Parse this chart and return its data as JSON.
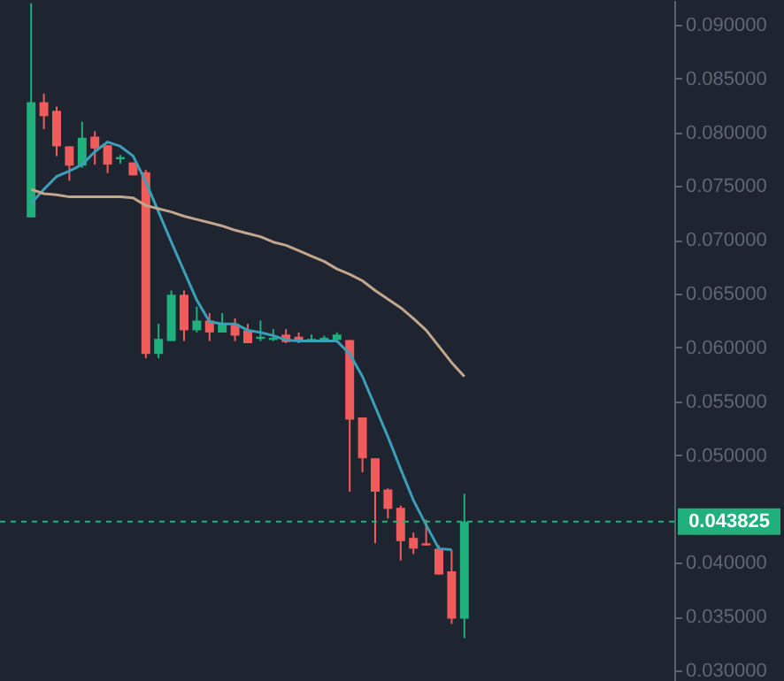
{
  "chart_data": {
    "type": "candlestick",
    "categories": [
      null,
      null,
      null,
      null,
      null,
      null,
      null,
      null,
      null,
      null,
      null,
      null,
      null,
      null,
      null,
      null,
      null,
      null,
      null,
      null,
      null,
      null,
      null,
      null,
      null,
      null,
      null,
      null,
      null,
      null,
      null,
      null,
      null,
      null,
      null
    ],
    "ohlc": [
      [
        0.0721,
        0.092,
        0.0721,
        0.0828
      ],
      [
        0.0828,
        0.0836,
        0.0803,
        0.0815
      ],
      [
        0.082,
        0.0824,
        0.0778,
        0.0787
      ],
      [
        0.0787,
        0.0787,
        0.0755,
        0.0769
      ],
      [
        0.0769,
        0.081,
        0.0767,
        0.0795
      ],
      [
        0.0796,
        0.0801,
        0.077,
        0.0785
      ],
      [
        0.0788,
        0.0788,
        0.0762,
        0.077
      ],
      [
        0.0775,
        0.0779,
        0.0771,
        0.0777
      ],
      [
        0.0772,
        0.0772,
        0.076,
        0.076
      ],
      [
        0.0763,
        0.0765,
        0.059,
        0.0594
      ],
      [
        0.0594,
        0.0622,
        0.059,
        0.0608
      ],
      [
        0.0606,
        0.0653,
        0.0606,
        0.0649
      ],
      [
        0.0649,
        0.0653,
        0.0606,
        0.0616
      ],
      [
        0.0616,
        0.0638,
        0.0614,
        0.0625
      ],
      [
        0.0625,
        0.0632,
        0.0606,
        0.0614
      ],
      [
        0.0614,
        0.0632,
        0.0614,
        0.0622
      ],
      [
        0.0622,
        0.0627,
        0.0606,
        0.0611
      ],
      [
        0.0616,
        0.0622,
        0.0604,
        0.0604
      ],
      [
        0.0608,
        0.0625,
        0.0606,
        0.061
      ],
      [
        0.0607,
        0.0617,
        0.0606,
        0.0609
      ],
      [
        0.0612,
        0.0617,
        0.0604,
        0.0605
      ],
      [
        0.061,
        0.0614,
        0.0604,
        0.0606
      ],
      [
        0.0606,
        0.0612,
        0.0605,
        0.0608
      ],
      [
        0.0606,
        0.0611,
        0.0605,
        0.0609
      ],
      [
        0.0607,
        0.0614,
        0.0606,
        0.0612
      ],
      [
        0.0607,
        0.0607,
        0.0466,
        0.0533
      ],
      [
        0.0535,
        0.0535,
        0.0484,
        0.0497
      ],
      [
        0.0497,
        0.0497,
        0.0418,
        0.0466
      ],
      [
        0.0468,
        0.0469,
        0.0441,
        0.045
      ],
      [
        0.0451,
        0.0453,
        0.0402,
        0.042
      ],
      [
        0.0423,
        0.0428,
        0.0408,
        0.0413
      ],
      [
        0.0418,
        0.044,
        0.0416,
        0.0416
      ],
      [
        0.0413,
        0.0416,
        0.0389,
        0.0389
      ],
      [
        0.0392,
        0.0412,
        0.0343,
        0.0348
      ],
      [
        0.0348,
        0.0464,
        0.033,
        0.043825
      ]
    ],
    "colors": [
      "#1fb07c",
      "#f05b5b",
      "#f05b5b",
      "#f05b5b",
      "#1fb07c",
      "#f05b5b",
      "#f05b5b",
      "#1fb07c",
      "#f05b5b",
      "#f05b5b",
      "#1fb07c",
      "#1fb07c",
      "#f05b5b",
      "#1fb07c",
      "#f05b5b",
      "#1fb07c",
      "#f05b5b",
      "#f05b5b",
      "#1fb07c",
      "#1fb07c",
      "#f05b5b",
      "#f05b5b",
      "#1fb07c",
      "#1fb07c",
      "#1fb07c",
      "#f05b5b",
      "#f05b5b",
      "#f05b5b",
      "#f05b5b",
      "#f05b5b",
      "#f05b5b",
      "#f05b5b",
      "#f05b5b",
      "#f05b5b",
      "#1fb07c"
    ],
    "series": [
      {
        "type": "line",
        "color": "#3a9fb8",
        "values": [
          0.0734,
          0.0747,
          0.0759,
          0.0764,
          0.077,
          0.0782,
          0.0791,
          0.0787,
          0.0778,
          0.0754,
          0.0726,
          0.0698,
          0.0671,
          0.0644,
          0.0624,
          0.0622,
          0.0622,
          0.0616,
          0.0614,
          0.0611,
          0.0607,
          0.0606,
          0.0606,
          0.0606,
          0.0606,
          0.0594,
          0.0573,
          0.0545,
          0.0517,
          0.0487,
          0.0458,
          0.0435,
          0.0413,
          0.0412,
          null
        ]
      },
      {
        "type": "line",
        "color": "#c2a78e",
        "values": [
          0.0747,
          0.0743,
          0.0742,
          0.074,
          0.074,
          0.074,
          0.074,
          0.074,
          0.0739,
          0.0732,
          0.0729,
          0.0726,
          0.0722,
          0.0719,
          0.0716,
          0.0713,
          0.0709,
          0.0706,
          0.0703,
          0.0698,
          0.0695,
          0.069,
          0.0685,
          0.068,
          0.0673,
          0.0668,
          0.0662,
          0.0653,
          0.0645,
          0.0637,
          0.0627,
          0.0616,
          0.0601,
          0.0586,
          0.0573
        ]
      }
    ],
    "ylim": [
      0.029,
      0.0923
    ],
    "yticks": [
      {
        "value": 0.03,
        "label": "0.030000"
      },
      {
        "value": 0.035,
        "label": "0.035000"
      },
      {
        "value": 0.04,
        "label": "0.040000"
      },
      {
        "value": 0.05,
        "label": "0.050000"
      },
      {
        "value": 0.055,
        "label": "0.055000"
      },
      {
        "value": 0.06,
        "label": "0.060000"
      },
      {
        "value": 0.065,
        "label": "0.065000"
      },
      {
        "value": 0.07,
        "label": "0.070000"
      },
      {
        "value": 0.075,
        "label": "0.075000"
      },
      {
        "value": 0.08,
        "label": "0.080000"
      },
      {
        "value": 0.085,
        "label": "0.085000"
      },
      {
        "value": 0.09,
        "label": "0.090000"
      }
    ],
    "ref_lines": [
      {
        "axis": "y",
        "value": 0.043825,
        "label": "0.043825",
        "color": "#1fb07c",
        "line_style": "dashed"
      }
    ],
    "tick_labels": "y",
    "grid": false
  }
}
